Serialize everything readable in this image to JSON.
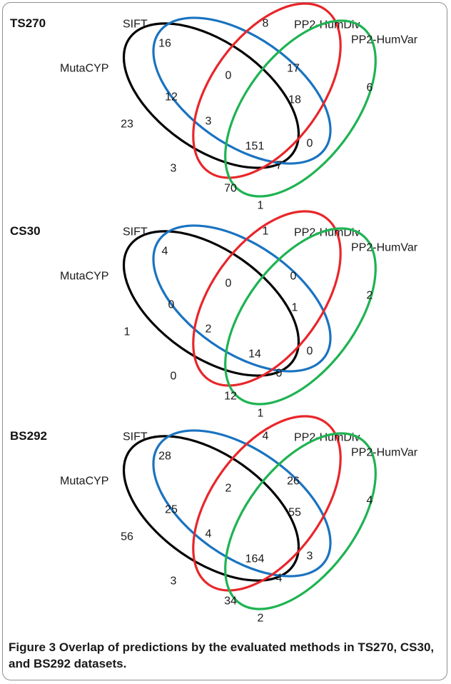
{
  "figure": {
    "caption_label": "Figure 3",
    "caption_text": "Overlap of predictions by the evaluated methods in TS270, CS30, and BS292 datasets."
  },
  "colors": {
    "MutaCYP": "#000000",
    "SIFT": "#1a73c0",
    "PP2-HumDiv": "#e8262a",
    "PP2-HumVar": "#1eb352"
  },
  "sets": [
    "MutaCYP",
    "SIFT",
    "PP2-HumDiv",
    "PP2-HumVar"
  ],
  "panels": [
    {
      "title": "TS270",
      "labels": {
        "MutaCYP": "MutaCYP",
        "SIFT": "SIFT",
        "PP2-HumDiv": "PP2-HumDiv",
        "PP2-HumVar": "PP2-HumVar"
      },
      "regions": {
        "sift_only": "16",
        "div_only": "8",
        "var_only": "6",
        "muta_only": "23",
        "sift_div": "0",
        "div_var": "17",
        "muta_sift": "12",
        "sift_div_var": "18",
        "muta_sift_div": "3",
        "all_four": "151",
        "sift_var": "0",
        "muta_div": "3",
        "muta_div_var": "70",
        "muta_sift_var": "7",
        "muta_var": "1"
      }
    },
    {
      "title": "CS30",
      "labels": {
        "MutaCYP": "MutaCYP",
        "SIFT": "SIFT",
        "PP2-HumDiv": "PP2-HumDiv",
        "PP2-HumVar": "PP2-HumVar"
      },
      "regions": {
        "sift_only": "4",
        "div_only": "1",
        "var_only": "2",
        "muta_only": "1",
        "sift_div": "0",
        "div_var": "0",
        "muta_sift": "0",
        "sift_div_var": "1",
        "muta_sift_div": "2",
        "all_four": "14",
        "sift_var": "0",
        "muta_div": "0",
        "muta_div_var": "12",
        "muta_sift_var": "0",
        "muta_var": "1"
      }
    },
    {
      "title": "BS292",
      "labels": {
        "MutaCYP": "MutaCYP",
        "SIFT": "SIFT",
        "PP2-HumDiv": "PP2-HumDiv",
        "PP2-HumVar": "PP2-HumVar"
      },
      "regions": {
        "sift_only": "28",
        "div_only": "4",
        "var_only": "4",
        "muta_only": "56",
        "sift_div": "2",
        "div_var": "26",
        "muta_sift": "25",
        "sift_div_var": "55",
        "muta_sift_div": "4",
        "all_four": "164",
        "sift_var": "3",
        "muta_div": "3",
        "muta_div_var": "34",
        "muta_sift_var": "4",
        "muta_var": "2"
      }
    }
  ]
}
